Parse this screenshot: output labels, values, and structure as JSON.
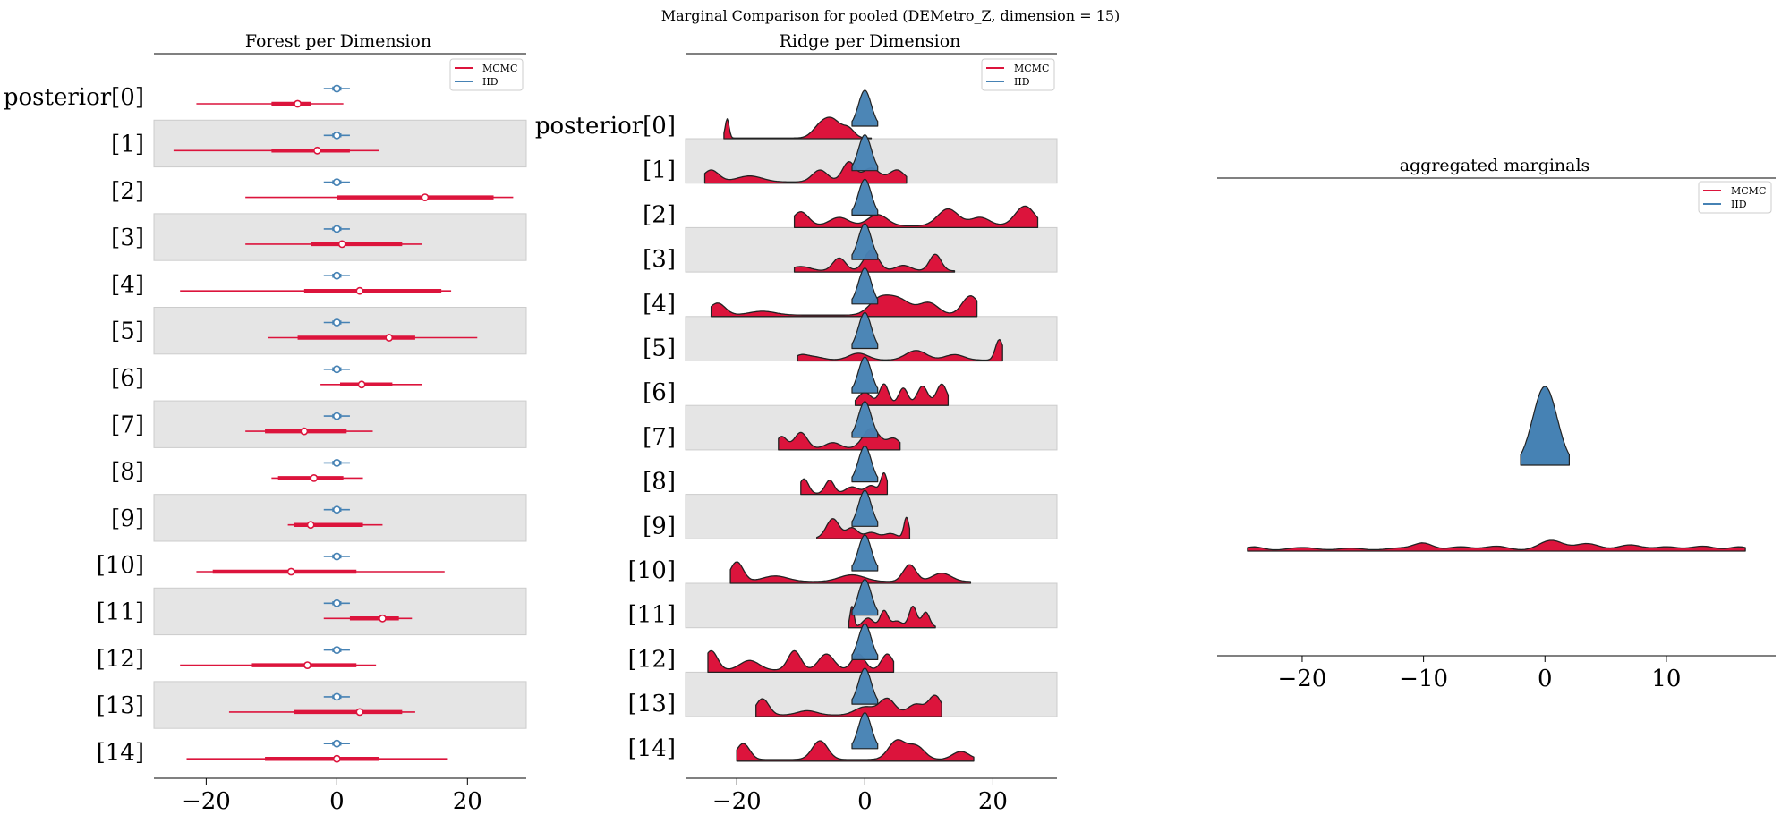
{
  "figure": {
    "suptitle": "Marginal Comparison for pooled (DEMetro_Z, dimension = 15)"
  },
  "colors": {
    "mcmc": "#dc143c",
    "iid": "#4682b4",
    "band": "#e5e5e5"
  },
  "legend": {
    "mcmc": "MCMC",
    "iid": "IID"
  },
  "chart_data": [
    {
      "type": "forest",
      "title": "Forest per Dimension",
      "xlim": [
        -28,
        29
      ],
      "xticks": [
        -20,
        0,
        20
      ],
      "xtick_labels": [
        "−20",
        "0",
        "20"
      ],
      "labels": [
        "posterior[0]",
        "[1]",
        "[2]",
        "[3]",
        "[4]",
        "[5]",
        "[6]",
        "[7]",
        "[8]",
        "[9]",
        "[10]",
        "[11]",
        "[12]",
        "[13]",
        "[14]"
      ],
      "series": [
        {
          "name": "MCMC",
          "median": [
            -6,
            -3,
            13.5,
            0.8,
            3.5,
            8,
            3.8,
            -5,
            -3.5,
            -4,
            -7,
            7,
            -4.5,
            3.5,
            0
          ],
          "hdi_50": [
            [
              -10,
              -4
            ],
            [
              -10,
              2
            ],
            [
              0,
              24
            ],
            [
              -4,
              10
            ],
            [
              -5,
              16
            ],
            [
              -6,
              12
            ],
            [
              0.5,
              8.5
            ],
            [
              -11,
              1.5
            ],
            [
              -9,
              1
            ],
            [
              -6.5,
              4
            ],
            [
              -19,
              3
            ],
            [
              2,
              9.5
            ],
            [
              -13,
              3
            ],
            [
              -6.5,
              10
            ],
            [
              -11,
              6.5
            ]
          ],
          "hdi_94": [
            [
              -21.5,
              1
            ],
            [
              -25,
              6.5
            ],
            [
              -14,
              27
            ],
            [
              -14,
              13
            ],
            [
              -24,
              17.5
            ],
            [
              -10.5,
              21.5
            ],
            [
              -2.5,
              13
            ],
            [
              -14,
              5.5
            ],
            [
              -10,
              4
            ],
            [
              -7.5,
              7
            ],
            [
              -21.5,
              16.5
            ],
            [
              -2,
              11.5
            ],
            [
              -24,
              6
            ],
            [
              -16.5,
              12
            ],
            [
              -23,
              17
            ]
          ]
        },
        {
          "name": "IID",
          "median": [
            0,
            0,
            0,
            0,
            0,
            0,
            0,
            0,
            0,
            0,
            0,
            0,
            0,
            0,
            0
          ],
          "hdi_50": [
            [
              -0.7,
              0.7
            ],
            [
              -0.7,
              0.7
            ],
            [
              -0.7,
              0.7
            ],
            [
              -0.7,
              0.7
            ],
            [
              -0.7,
              0.7
            ],
            [
              -0.7,
              0.7
            ],
            [
              -0.7,
              0.7
            ],
            [
              -0.7,
              0.7
            ],
            [
              -0.7,
              0.7
            ],
            [
              -0.7,
              0.7
            ],
            [
              -0.7,
              0.7
            ],
            [
              -0.7,
              0.7
            ],
            [
              -0.7,
              0.7
            ],
            [
              -0.7,
              0.7
            ],
            [
              -0.7,
              0.7
            ]
          ],
          "hdi_94": [
            [
              -2,
              2
            ],
            [
              -2,
              2
            ],
            [
              -2,
              2
            ],
            [
              -2,
              2
            ],
            [
              -2,
              2
            ],
            [
              -2,
              2
            ],
            [
              -2,
              2
            ],
            [
              -2,
              2
            ],
            [
              -2,
              2
            ],
            [
              -2,
              2
            ],
            [
              -2,
              2
            ],
            [
              -2,
              2
            ],
            [
              -2,
              2
            ],
            [
              -2,
              2
            ],
            [
              -2,
              2
            ]
          ]
        }
      ]
    },
    {
      "type": "ridge",
      "title": "Ridge per Dimension",
      "xlim": [
        -28,
        30
      ],
      "xticks": [
        -20,
        0,
        20
      ],
      "xtick_labels": [
        "−20",
        "0",
        "20"
      ],
      "labels": [
        "posterior[0]",
        "[1]",
        "[2]",
        "[3]",
        "[4]",
        "[5]",
        "[6]",
        "[7]",
        "[8]",
        "[9]",
        "[10]",
        "[11]",
        "[12]",
        "[13]",
        "[14]"
      ],
      "iid_range": [
        -2,
        2
      ],
      "mcmc": [
        {
          "range": [
            -22,
            1
          ],
          "peaks": [
            [
              -21.5,
              0.9,
              0.3
            ],
            [
              -7,
              0.5,
              1.2
            ],
            [
              -5,
              0.8,
              1.3
            ],
            [
              -2.5,
              0.4,
              0.9
            ]
          ]
        },
        {
          "range": [
            -25,
            6.5
          ],
          "peaks": [
            [
              -24,
              0.3,
              1.2
            ],
            [
              -18,
              0.15,
              2
            ],
            [
              -7,
              0.3,
              1.2
            ],
            [
              -2.5,
              0.5,
              1
            ],
            [
              1,
              0.35,
              1.3
            ],
            [
              5,
              0.3,
              1.2
            ]
          ]
        },
        {
          "range": [
            -11,
            27
          ],
          "peaks": [
            [
              -10,
              0.25,
              1.2
            ],
            [
              -4,
              0.15,
              1.5
            ],
            [
              2,
              0.2,
              1.5
            ],
            [
              13,
              0.3,
              1.6
            ],
            [
              18,
              0.15,
              1.5
            ],
            [
              25,
              0.35,
              1.5
            ]
          ]
        },
        {
          "range": [
            -11,
            14
          ],
          "peaks": [
            [
              -10,
              0.12,
              1.5
            ],
            [
              -4,
              0.35,
              1
            ],
            [
              1,
              0.55,
              1.1
            ],
            [
              6,
              0.15,
              1.2
            ],
            [
              11,
              0.45,
              0.9
            ]
          ]
        },
        {
          "range": [
            -24,
            17.5
          ],
          "peaks": [
            [
              -23,
              0.25,
              1.2
            ],
            [
              -16,
              0.08,
              2
            ],
            [
              2,
              0.25,
              1.5
            ],
            [
              5,
              0.35,
              2
            ],
            [
              10,
              0.25,
              1.5
            ],
            [
              16.5,
              0.4,
              1.3
            ]
          ]
        },
        {
          "range": [
            -10.5,
            21.5
          ],
          "peaks": [
            [
              -10,
              0.15,
              1
            ],
            [
              -8,
              0.12,
              1.5
            ],
            [
              -1,
              0.25,
              1.5
            ],
            [
              8,
              0.35,
              1.6
            ],
            [
              14,
              0.2,
              1.5
            ],
            [
              21,
              0.75,
              0.6
            ]
          ]
        },
        {
          "range": [
            -1.5,
            13
          ],
          "peaks": [
            [
              0,
              0.3,
              1
            ],
            [
              3,
              0.5,
              0.7
            ],
            [
              6,
              0.4,
              0.7
            ],
            [
              9,
              0.45,
              0.8
            ],
            [
              12,
              0.5,
              0.8
            ]
          ]
        },
        {
          "range": [
            -13.5,
            5.5
          ],
          "peaks": [
            [
              -13,
              0.3,
              0.8
            ],
            [
              -10,
              0.4,
              1
            ],
            [
              -5,
              0.15,
              1.2
            ],
            [
              1,
              0.5,
              1.3
            ],
            [
              4.5,
              0.25,
              1
            ]
          ]
        },
        {
          "range": [
            -10,
            3.5
          ],
          "peaks": [
            [
              -9.5,
              0.55,
              0.7
            ],
            [
              -5.5,
              0.5,
              0.7
            ],
            [
              -2,
              0.25,
              1
            ],
            [
              1,
              0.3,
              0.9
            ],
            [
              3,
              0.75,
              0.5
            ]
          ]
        },
        {
          "range": [
            -7.5,
            7
          ],
          "peaks": [
            [
              -5,
              0.85,
              1
            ],
            [
              -2,
              0.45,
              0.9
            ],
            [
              1,
              0.25,
              1
            ],
            [
              4,
              0.2,
              1
            ],
            [
              6.5,
              0.9,
              0.4
            ]
          ]
        },
        {
          "range": [
            -21,
            16.5
          ],
          "peaks": [
            [
              -20,
              0.35,
              1
            ],
            [
              -14,
              0.1,
              2
            ],
            [
              -2,
              0.12,
              2
            ],
            [
              7,
              0.3,
              1
            ],
            [
              12,
              0.15,
              1.5
            ]
          ]
        },
        {
          "range": [
            -2.5,
            11
          ],
          "peaks": [
            [
              -2,
              0.7,
              0.3
            ],
            [
              0.5,
              0.3,
              0.8
            ],
            [
              3,
              0.55,
              0.6
            ],
            [
              5,
              0.2,
              0.8
            ],
            [
              7.5,
              0.7,
              0.6
            ],
            [
              9.5,
              0.5,
              0.6
            ]
          ]
        },
        {
          "range": [
            -24.5,
            4.5
          ],
          "peaks": [
            [
              -24,
              0.3,
              1
            ],
            [
              -18,
              0.15,
              1.5
            ],
            [
              -11,
              0.3,
              1
            ],
            [
              -6,
              0.25,
              1.2
            ],
            [
              -1,
              0.25,
              1
            ],
            [
              3.5,
              0.25,
              0.9
            ]
          ]
        },
        {
          "range": [
            -17,
            12
          ],
          "peaks": [
            [
              -16,
              0.3,
              1
            ],
            [
              -9,
              0.08,
              1.5
            ],
            [
              0,
              0.15,
              1.5
            ],
            [
              3.5,
              0.3,
              1.2
            ],
            [
              8,
              0.2,
              1.3
            ],
            [
              11,
              0.35,
              1
            ]
          ]
        },
        {
          "range": [
            -20,
            17
          ],
          "peaks": [
            [
              -19,
              0.3,
              1
            ],
            [
              -7,
              0.35,
              1.2
            ],
            [
              5,
              0.35,
              1.3
            ],
            [
              8,
              0.25,
              1.3
            ],
            [
              15,
              0.15,
              1.3
            ]
          ]
        }
      ]
    },
    {
      "type": "ridge",
      "title": "aggregated marginals",
      "xlim": [
        -27,
        19
      ],
      "xticks": [
        -20,
        -10,
        0,
        10
      ],
      "xtick_labels": [
        "−20",
        "−10",
        "0",
        "10"
      ],
      "iid_range": [
        -2,
        2
      ],
      "mcmc": {
        "range": [
          -24.5,
          16.5
        ],
        "peaks": [
          [
            -24,
            0.3,
            0.8
          ],
          [
            -20,
            0.25,
            1.2
          ],
          [
            -16,
            0.2,
            1
          ],
          [
            -12,
            0.2,
            1.2
          ],
          [
            -10,
            0.55,
            0.8
          ],
          [
            -7,
            0.3,
            1
          ],
          [
            -4,
            0.35,
            1
          ],
          [
            0.5,
            0.8,
            1
          ],
          [
            3.5,
            0.55,
            1
          ],
          [
            7,
            0.45,
            1
          ],
          [
            10,
            0.3,
            1
          ],
          [
            13,
            0.35,
            1
          ],
          [
            16,
            0.3,
            0.8
          ]
        ]
      }
    }
  ]
}
